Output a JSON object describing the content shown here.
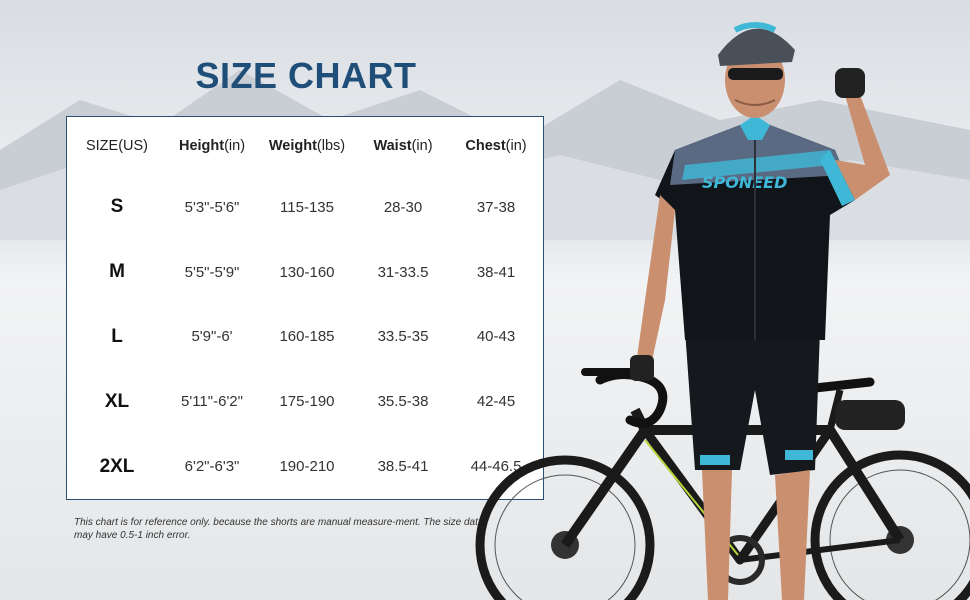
{
  "title": "SIZE CHART",
  "columns": [
    {
      "bold": "",
      "unit": "SIZE(US)"
    },
    {
      "bold": "Height",
      "unit": "(in)"
    },
    {
      "bold": "Weight",
      "unit": "(lbs)"
    },
    {
      "bold": "Waist",
      "unit": "(in)"
    },
    {
      "bold": "Chest",
      "unit": "(in)"
    }
  ],
  "rows": [
    {
      "size": "S",
      "height": "5'3\"-5'6\"",
      "weight": "115-135",
      "waist": "28-30",
      "chest": "37-38"
    },
    {
      "size": "M",
      "height": "5'5\"-5'9\"",
      "weight": "130-160",
      "waist": "31-33.5",
      "chest": "38-41"
    },
    {
      "size": "L",
      "height": "5'9\"-6'",
      "weight": "160-185",
      "waist": "33.5-35",
      "chest": "40-43"
    },
    {
      "size": "XL",
      "height": "5'11\"-6'2\"",
      "weight": "175-190",
      "waist": "35.5-38",
      "chest": "42-45"
    },
    {
      "size": "2XL",
      "height": "6'2\"-6'3\"",
      "weight": "190-210",
      "waist": "38.5-41",
      "chest": "44-46.5"
    }
  ],
  "note": "This chart is for reference only. because the shorts are manual measure-ment. The size data may have 0.5-1 inch error.",
  "jersey_brand": "SPONEED",
  "colors": {
    "title": "#1f4e79",
    "border": "#2b4f74",
    "accent": "#3fb8d8"
  }
}
